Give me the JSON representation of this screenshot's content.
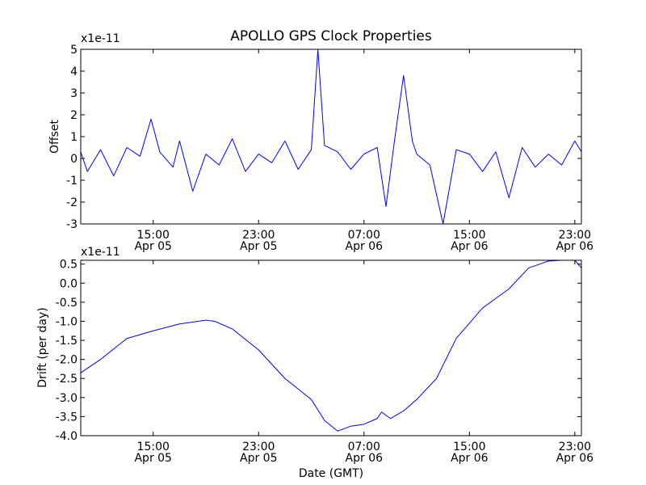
{
  "figure": {
    "title": "APOLLO GPS Clock Properties",
    "line_color": "#0000ff"
  },
  "chart_data": [
    {
      "type": "line",
      "ylabel": "Offset",
      "xlabel": "",
      "scale_label": "x1e-11",
      "ylim": [
        -3,
        5
      ],
      "yticks": [
        -3,
        -2,
        -1,
        0,
        1,
        2,
        3,
        4,
        5
      ],
      "xlim": [
        "Apr 05 09:30",
        "Apr 06 23:30"
      ],
      "xticks": [
        {
          "time": "15:00",
          "date": "Apr 05"
        },
        {
          "time": "23:00",
          "date": "Apr 05"
        },
        {
          "time": "07:00",
          "date": "Apr 06"
        },
        {
          "time": "15:00",
          "date": "Apr 06"
        },
        {
          "time": "23:00",
          "date": "Apr 06"
        }
      ],
      "grid": false,
      "series": [
        {
          "x": [
            "Apr 05 09:30",
            "Apr 05 10:00",
            "Apr 05 11:00",
            "Apr 05 12:00",
            "Apr 05 13:00",
            "Apr 05 14:00",
            "Apr 05 14:50",
            "Apr 05 15:30",
            "Apr 05 16:30",
            "Apr 05 17:00",
            "Apr 05 18:00",
            "Apr 05 19:00",
            "Apr 05 20:00",
            "Apr 05 21:00",
            "Apr 05 22:00",
            "Apr 05 23:00",
            "Apr 06 00:00",
            "Apr 06 01:00",
            "Apr 06 02:00",
            "Apr 06 03:00",
            "Apr 06 03:30",
            "Apr 06 04:00",
            "Apr 06 05:00",
            "Apr 06 06:00",
            "Apr 06 07:00",
            "Apr 06 08:00",
            "Apr 06 08:40",
            "Apr 06 09:20",
            "Apr 06 10:00",
            "Apr 06 10:40",
            "Apr 06 11:00",
            "Apr 06 12:00",
            "Apr 06 13:00",
            "Apr 06 14:00",
            "Apr 06 15:00",
            "Apr 06 16:00",
            "Apr 06 17:00",
            "Apr 06 18:00",
            "Apr 06 19:00",
            "Apr 06 20:00",
            "Apr 06 21:00",
            "Apr 06 22:00",
            "Apr 06 23:00",
            "Apr 06 23:30"
          ],
          "y": [
            0.3,
            -0.6,
            0.4,
            -0.8,
            0.5,
            0.1,
            1.8,
            0.3,
            -0.4,
            0.8,
            -1.5,
            0.2,
            -0.3,
            0.9,
            -0.6,
            0.2,
            -0.2,
            0.8,
            -0.5,
            0.4,
            5.0,
            0.6,
            0.3,
            -0.5,
            0.2,
            0.5,
            -2.2,
            0.9,
            3.8,
            0.8,
            0.2,
            -0.3,
            -3.0,
            0.4,
            0.2,
            -0.6,
            0.3,
            -1.8,
            0.5,
            -0.4,
            0.2,
            -0.3,
            0.8,
            0.3
          ]
        }
      ]
    },
    {
      "type": "line",
      "ylabel": "Drift (per day)",
      "xlabel": "Date (GMT)",
      "scale_label": "x1e-11",
      "ylim": [
        -4.0,
        0.6
      ],
      "yticks": [
        -4.0,
        -3.5,
        -3.0,
        -2.5,
        -2.0,
        -1.5,
        -1.0,
        -0.5,
        0.0,
        0.5
      ],
      "xlim": [
        "Apr 05 09:30",
        "Apr 06 23:30"
      ],
      "xticks": [
        {
          "time": "15:00",
          "date": "Apr 05"
        },
        {
          "time": "23:00",
          "date": "Apr 05"
        },
        {
          "time": "07:00",
          "date": "Apr 06"
        },
        {
          "time": "15:00",
          "date": "Apr 06"
        },
        {
          "time": "23:00",
          "date": "Apr 06"
        }
      ],
      "grid": false,
      "series": [
        {
          "x": [
            "Apr 05 09:30",
            "Apr 05 11:00",
            "Apr 05 13:00",
            "Apr 05 15:00",
            "Apr 05 17:00",
            "Apr 05 19:00",
            "Apr 05 19:40",
            "Apr 05 21:00",
            "Apr 05 23:00",
            "Apr 06 01:00",
            "Apr 06 03:00",
            "Apr 06 04:00",
            "Apr 06 05:00",
            "Apr 06 06:00",
            "Apr 06 07:00",
            "Apr 06 08:00",
            "Apr 06 08:20",
            "Apr 06 09:00",
            "Apr 06 10:00",
            "Apr 06 11:00",
            "Apr 06 12:30",
            "Apr 06 14:00",
            "Apr 06 16:00",
            "Apr 06 18:00",
            "Apr 06 19:30",
            "Apr 06 21:00",
            "Apr 06 22:00",
            "Apr 06 23:00",
            "Apr 06 23:30"
          ],
          "y": [
            -2.35,
            -2.0,
            -1.45,
            -1.25,
            -1.07,
            -0.97,
            -1.0,
            -1.2,
            -1.75,
            -2.5,
            -3.05,
            -3.6,
            -3.88,
            -3.75,
            -3.7,
            -3.55,
            -3.38,
            -3.55,
            -3.35,
            -3.05,
            -2.5,
            -1.45,
            -0.65,
            -0.15,
            0.4,
            0.58,
            0.6,
            0.6,
            0.4
          ]
        }
      ]
    }
  ]
}
